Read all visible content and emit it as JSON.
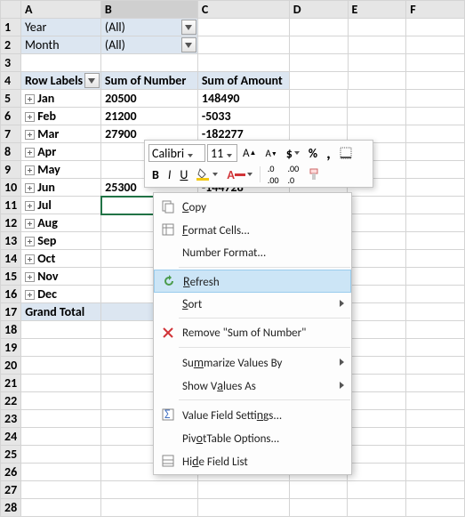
{
  "columns": [
    "A",
    "B",
    "C",
    "D",
    "E",
    "F"
  ],
  "rows_count": 28,
  "filters": [
    {
      "row": 1,
      "label": "Year",
      "value": "(All)"
    },
    {
      "row": 2,
      "label": "Month",
      "value": "(All)"
    }
  ],
  "pivot_headers": {
    "row_labels": "Row Labels",
    "col1": "Sum of Number",
    "col2": "Sum of Amount"
  },
  "data_rows": [
    {
      "label": "Jan",
      "v1": "20500",
      "v2": "148490"
    },
    {
      "label": "Feb",
      "v1": "21200",
      "v2": "-5033"
    },
    {
      "label": "Mar",
      "v1": "27900",
      "v2": "-182277"
    },
    {
      "label": "Apr",
      "v1": "",
      "v2": ""
    },
    {
      "label": "May",
      "v1": "",
      "v2": ""
    },
    {
      "label": "Jun",
      "v1": "25300",
      "v2": "-144728"
    },
    {
      "label": "Jul",
      "v1": "",
      "v2": ""
    },
    {
      "label": "Aug",
      "v1": "",
      "v2": ""
    },
    {
      "label": "Sep",
      "v1": "",
      "v2": ""
    },
    {
      "label": "Oct",
      "v1": "",
      "v2": ""
    },
    {
      "label": "Nov",
      "v1": "",
      "v2": ""
    },
    {
      "label": "Dec",
      "v1": "",
      "v2": ""
    }
  ],
  "grand_total_label": "Grand Total",
  "selected_cell": "B11",
  "mini_toolbar": {
    "font_name": "Calibri",
    "font_size": "11",
    "buttons_row2": [
      "B",
      "I"
    ]
  },
  "context_menu": {
    "items": [
      {
        "icon": "copy",
        "label": "Copy",
        "key": "C",
        "sep_after": false
      },
      {
        "icon": "format-cells",
        "label": "Format Cells...",
        "key": "F",
        "sep_after": false
      },
      {
        "icon": "",
        "label": "Number Format...",
        "key": "",
        "sep_after": true
      },
      {
        "icon": "refresh",
        "label": "Refresh",
        "key": "R",
        "highlight": true,
        "sep_after": false
      },
      {
        "icon": "",
        "label": "Sort",
        "key": "S",
        "submenu": true,
        "sep_after": true
      },
      {
        "icon": "remove",
        "label": "Remove \"Sum of Number\"",
        "key": "",
        "sep_after": true
      },
      {
        "icon": "",
        "label": "Summarize Values By",
        "key": "M",
        "submenu": true,
        "sep_after": false
      },
      {
        "icon": "",
        "label": "Show Values As",
        "key": "A",
        "submenu": true,
        "sep_after": true
      },
      {
        "icon": "value-field",
        "label": "Value Field Settings...",
        "key": "N",
        "sep_after": false
      },
      {
        "icon": "",
        "label": "PivotTable Options...",
        "key": "O",
        "sep_after": false
      },
      {
        "icon": "hide-field",
        "label": "Hide Field List",
        "key": "D",
        "sep_after": false
      }
    ]
  },
  "colors": {
    "selection": "#217346",
    "filter_bg": "#dce6f1",
    "header_bg": "#e6e6e6",
    "border": "#d4d4d4",
    "menu_highlight": "#cce5f6",
    "red": "#d13438",
    "yellow": "#f2c811"
  }
}
